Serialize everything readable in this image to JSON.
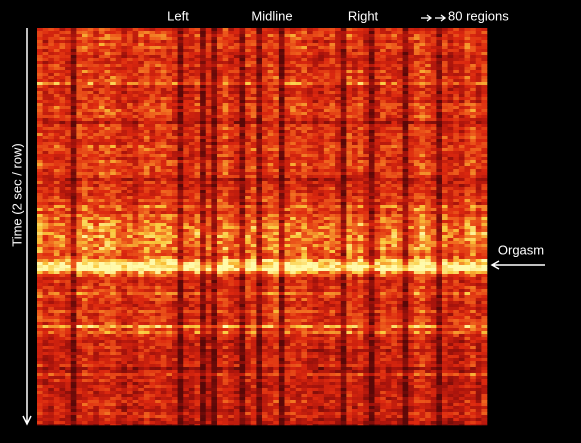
{
  "header": {
    "labels": [
      "Left",
      "Midline",
      "Right"
    ],
    "regions_note": "80 regions"
  },
  "axis": {
    "time_label": "Time (2 sec / row)"
  },
  "annotation": {
    "event": "Orgasm"
  }
}
